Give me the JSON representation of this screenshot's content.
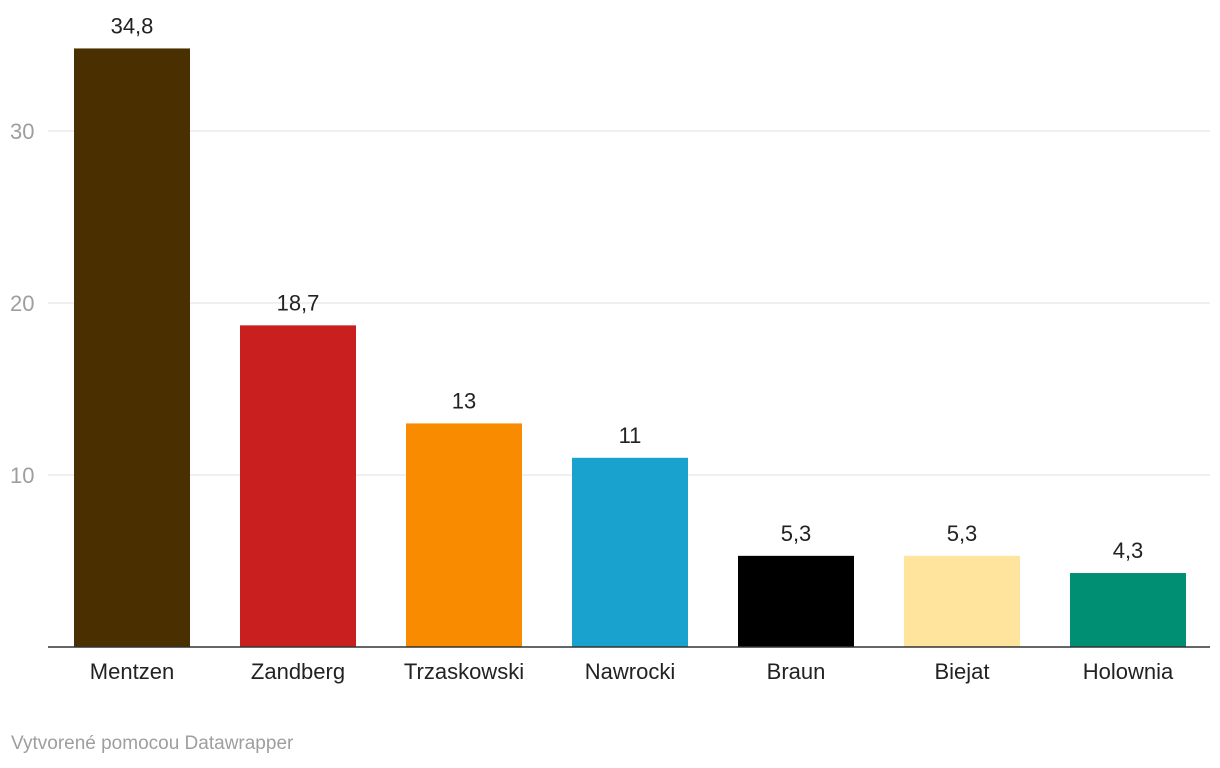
{
  "chart_data": {
    "type": "bar",
    "title": "",
    "xlabel": "",
    "ylabel": "",
    "categories": [
      "Mentzen",
      "Zandberg",
      "Trzaskowski",
      "Nawrocki",
      "Braun",
      "Biejat",
      "Holownia"
    ],
    "values": [
      34.8,
      18.7,
      13,
      11,
      5.3,
      5.3,
      4.3
    ],
    "value_labels": [
      "34,8",
      "18,7",
      "13",
      "11",
      "5,3",
      "5,3",
      "4,3"
    ],
    "colors": [
      "#4a2f00",
      "#c91f1f",
      "#f98b00",
      "#1aa2ce",
      "#000000",
      "#ffe49e",
      "#008f73"
    ],
    "ylim": [
      0,
      35
    ],
    "yticks": [
      10,
      20,
      30
    ],
    "ytick_labels": [
      "10",
      "20",
      "30"
    ],
    "grid": true,
    "legend": "none"
  },
  "footer": {
    "credit": "Vytvorené pomocou Datawrapper"
  }
}
